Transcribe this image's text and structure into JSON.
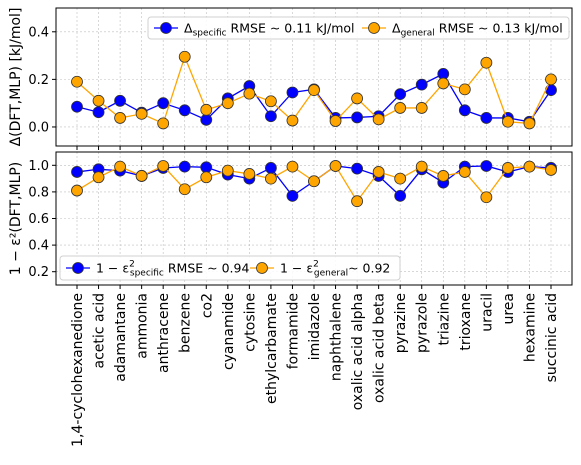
{
  "chart_data": [
    {
      "type": "line",
      "ylabel": "Δ(DFT,MLP) [kJ/mol]",
      "ylim": [
        -0.08,
        0.5
      ],
      "yticks": [
        "0.0",
        "0.2",
        "0.4"
      ],
      "grid": true,
      "legend_position": "top-right",
      "categories": [
        "1,4-cyclohexanedione",
        "acetic acid",
        "adamantane",
        "ammonia",
        "anthracene",
        "benzene",
        "co2",
        "cyanamide",
        "cytosine",
        "ethylcarbamate",
        "formamide",
        "imidazole",
        "naphthalene",
        "oxalic acid alpha",
        "oxalic acid beta",
        "pyrazine",
        "pyrazole",
        "triazine",
        "trioxane",
        "uracil",
        "urea",
        "hexamine",
        "succinic acid"
      ],
      "series": [
        {
          "name": "specific",
          "legend": {
            "delta": "Δ",
            "sub": "specific",
            "rest": " RMSE ∼ 0.11 kJ/mol"
          },
          "color": "#0000ff",
          "values": [
            0.085,
            0.062,
            0.11,
            0.06,
            0.1,
            0.07,
            0.03,
            0.12,
            0.172,
            0.045,
            0.145,
            0.158,
            0.038,
            0.04,
            0.045,
            0.138,
            0.178,
            0.223,
            0.07,
            0.038,
            0.038,
            0.022,
            0.155
          ]
        },
        {
          "name": "general",
          "legend": {
            "delta": "Δ",
            "sub": "general",
            "rest": " RMSE ∼ 0.13 kJ/mol"
          },
          "color": "#ffa500",
          "values": [
            0.19,
            0.11,
            0.038,
            0.055,
            0.015,
            0.295,
            0.072,
            0.1,
            0.14,
            0.108,
            0.027,
            0.155,
            0.025,
            0.12,
            0.032,
            0.08,
            0.08,
            0.183,
            0.158,
            0.27,
            0.022,
            0.015,
            0.2
          ]
        }
      ]
    },
    {
      "type": "line",
      "ylabel": "1 − ε²(DFT,MLP)",
      "ylim": [
        0.1,
        1.1
      ],
      "yticks": [
        "0.2",
        "0.4",
        "0.6",
        "0.8",
        "1.0"
      ],
      "grid": true,
      "legend_position": "bottom-left",
      "categories": [
        "1,4-cyclohexanedione",
        "acetic acid",
        "adamantane",
        "ammonia",
        "anthracene",
        "benzene",
        "co2",
        "cyanamide",
        "cytosine",
        "ethylcarbamate",
        "formamide",
        "imidazole",
        "naphthalene",
        "oxalic acid alpha",
        "oxalic acid beta",
        "pyrazine",
        "pyrazole",
        "triazine",
        "trioxane",
        "uracil",
        "urea",
        "hexamine",
        "succinic acid"
      ],
      "series": [
        {
          "name": "specific",
          "legend": {
            "prefix": "1 − ε",
            "sup": "2",
            "sub": "specific",
            "rest": " RMSE ∼ 0.94"
          },
          "color": "#0000ff",
          "values": [
            0.95,
            0.97,
            0.96,
            0.92,
            0.98,
            0.99,
            0.985,
            0.93,
            0.9,
            0.98,
            0.77,
            0.88,
            0.995,
            0.975,
            0.92,
            0.77,
            0.97,
            0.87,
            0.99,
            0.995,
            0.95,
            0.99,
            0.98
          ]
        },
        {
          "name": "general",
          "legend": {
            "prefix": "1 − ε",
            "sup": "2",
            "sub": "general",
            "rest": "∼ 0.92"
          },
          "color": "#ffa500",
          "values": [
            0.81,
            0.91,
            0.99,
            0.92,
            0.995,
            0.82,
            0.91,
            0.96,
            0.935,
            0.9,
            0.99,
            0.88,
            0.995,
            0.73,
            0.95,
            0.9,
            0.99,
            0.92,
            0.95,
            0.76,
            0.98,
            0.99,
            0.965
          ]
        }
      ]
    }
  ]
}
